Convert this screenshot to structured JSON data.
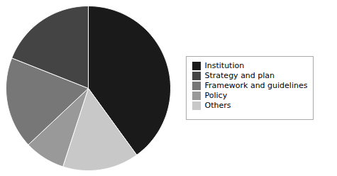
{
  "chart_data": {
    "type": "pie",
    "categories": [
      "Institution",
      "Others",
      "Policy",
      "Framework and guidelines",
      "Strategy and plan"
    ],
    "values": [
      40,
      15,
      8,
      18,
      19
    ],
    "colors": [
      "#1a1a1a",
      "#c8c8c8",
      "#999999",
      "#777777",
      "#444444"
    ],
    "legend_labels": [
      "Institution",
      "Strategy and plan",
      "Framework and guidelines",
      "Policy",
      "Others"
    ],
    "legend": "right"
  }
}
